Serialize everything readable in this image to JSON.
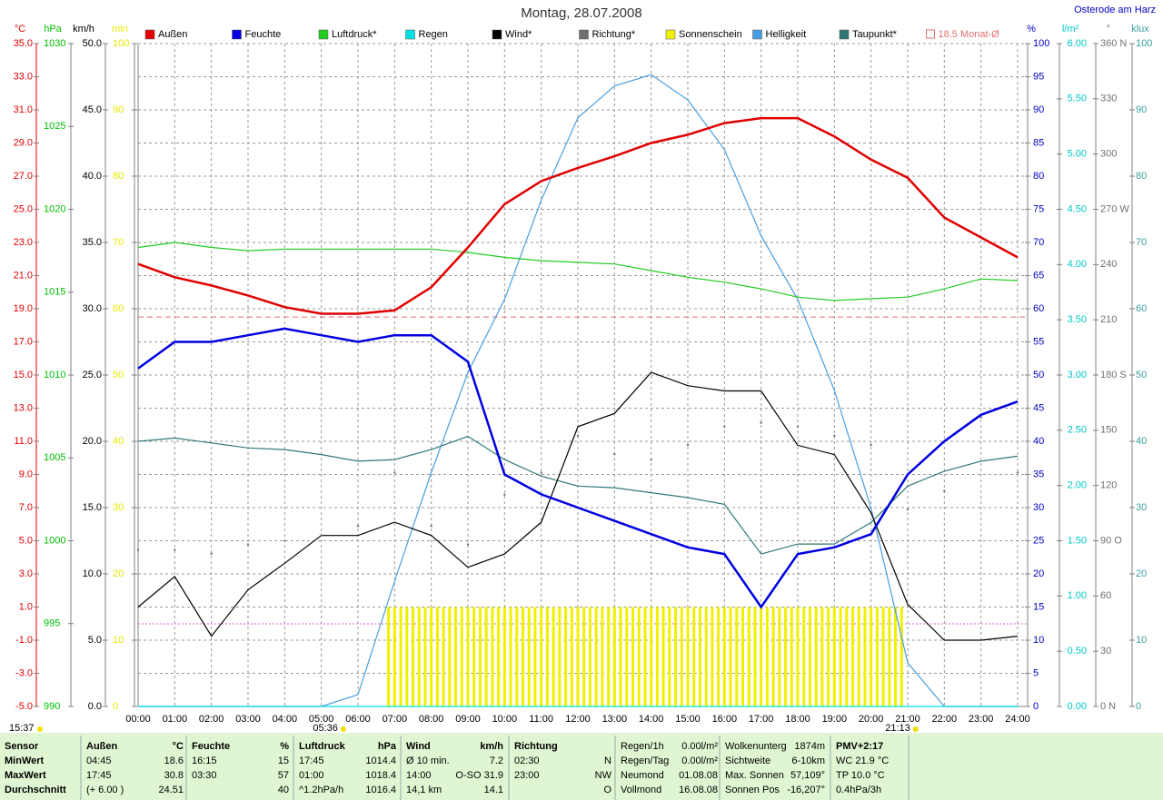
{
  "chart_data": {
    "type": "line",
    "title": "Montag, 28.07.2008",
    "location": "Osterode am Harz",
    "categories": [
      "00:00",
      "01:00",
      "02:00",
      "03:00",
      "04:00",
      "05:00",
      "06:00",
      "07:00",
      "08:00",
      "09:00",
      "10:00",
      "11:00",
      "12:00",
      "13:00",
      "14:00",
      "15:00",
      "16:00",
      "17:00",
      "18:00",
      "19:00",
      "20:00",
      "21:00",
      "22:00",
      "23:00",
      "24:00"
    ],
    "grid": true,
    "axes": [
      {
        "unit": "°C",
        "color": "#e00000",
        "lim": [
          -5,
          35
        ],
        "ticks": [
          {
            "value": -5,
            "label": "-5.0"
          },
          {
            "value": -3,
            "label": "-3.0"
          },
          {
            "value": -1,
            "label": "-1.0"
          },
          {
            "value": 1,
            "label": "1.0"
          },
          {
            "value": 3,
            "label": "3.0"
          },
          {
            "value": 5,
            "label": "5.0"
          },
          {
            "value": 7,
            "label": "7.0"
          },
          {
            "value": 9,
            "label": "9.0"
          },
          {
            "value": 11,
            "label": "11.0"
          },
          {
            "value": 13,
            "label": "13.0"
          },
          {
            "value": 15,
            "label": "15.0"
          },
          {
            "value": 17,
            "label": "17.0"
          },
          {
            "value": 19,
            "label": "19.0"
          },
          {
            "value": 21,
            "label": "21.0"
          },
          {
            "value": 23,
            "label": "23.0"
          },
          {
            "value": 25,
            "label": "25.0"
          },
          {
            "value": 27,
            "label": "27.0"
          },
          {
            "value": 29,
            "label": "29.0"
          },
          {
            "value": 31,
            "label": "31.0"
          },
          {
            "value": 33,
            "label": "33.0"
          },
          {
            "value": 35,
            "label": "35.0"
          }
        ]
      },
      {
        "unit": "hPa",
        "color": "#00c000",
        "lim": [
          990,
          1030
        ],
        "ticks": [
          990,
          995,
          1000,
          1005,
          1010,
          1015,
          1020,
          1025,
          1030
        ]
      },
      {
        "unit": "km/h",
        "color": "#000000",
        "lim": [
          0,
          50
        ],
        "ticks": [
          {
            "value": 0,
            "label": "0.0"
          },
          {
            "value": 5,
            "label": "5.0"
          },
          {
            "value": 10,
            "label": "10.0"
          },
          {
            "value": 15,
            "label": "15.0"
          },
          {
            "value": 20,
            "label": "20.0"
          },
          {
            "value": 25,
            "label": "25.0"
          },
          {
            "value": 30,
            "label": "30.0"
          },
          {
            "value": 35,
            "label": "35.0"
          },
          {
            "value": 40,
            "label": "40.0"
          },
          {
            "value": 45,
            "label": "45.0"
          },
          {
            "value": 50,
            "label": "50.0"
          }
        ]
      },
      {
        "unit": "min",
        "color": "#e8e800",
        "lim": [
          0,
          100
        ],
        "ticks": [
          0,
          10,
          20,
          30,
          40,
          50,
          60,
          70,
          80,
          90,
          100
        ]
      },
      {
        "unit": "%",
        "color": "#0000c0",
        "lim": [
          0,
          100
        ],
        "ticks": [
          0,
          5,
          10,
          15,
          20,
          25,
          30,
          35,
          40,
          45,
          50,
          55,
          60,
          65,
          70,
          75,
          80,
          85,
          90,
          95,
          100
        ]
      },
      {
        "unit": "l/m²",
        "color": "#00c8c8",
        "lim": [
          0,
          6
        ],
        "ticks": [
          {
            "value": 0,
            "label": "0.00"
          },
          {
            "value": 0.5,
            "label": "0.50"
          },
          {
            "value": 1,
            "label": "1.00"
          },
          {
            "value": 1.5,
            "label": "1.50"
          },
          {
            "value": 2,
            "label": "2.00"
          },
          {
            "value": 2.5,
            "label": "2.50"
          },
          {
            "value": 3,
            "label": "3.00"
          },
          {
            "value": 3.5,
            "label": "3.50"
          },
          {
            "value": 4,
            "label": "4.00"
          },
          {
            "value": 4.5,
            "label": "4.50"
          },
          {
            "value": 5,
            "label": "5.00"
          },
          {
            "value": 5.5,
            "label": "5.50"
          },
          {
            "value": 6,
            "label": "6.00"
          }
        ]
      },
      {
        "unit": "°",
        "color": "#707070",
        "lim": [
          0,
          360
        ],
        "ticks": [
          {
            "value": 0,
            "label": "0 N"
          },
          30,
          60,
          {
            "value": 90,
            "label": "90 O"
          },
          120,
          150,
          {
            "value": 180,
            "label": "180 S"
          },
          210,
          240,
          {
            "value": 270,
            "label": "270 W"
          },
          300,
          330,
          {
            "value": 360,
            "label": "360 N"
          }
        ]
      },
      {
        "unit": "klux",
        "color": "#3aa0a0",
        "lim": [
          0,
          100
        ],
        "ticks": [
          0,
          10,
          20,
          30,
          40,
          50,
          60,
          70,
          80,
          90,
          100
        ]
      }
    ],
    "series": [
      {
        "name": "Außen",
        "color": "#e00000",
        "axis": "°C",
        "style": "line",
        "values": [
          21.7,
          20.9,
          20.4,
          19.8,
          19.1,
          18.7,
          18.7,
          18.9,
          20.3,
          22.7,
          25.3,
          26.7,
          27.5,
          28.2,
          29.0,
          29.5,
          30.2,
          30.5,
          30.5,
          29.4,
          28.0,
          26.9,
          24.5,
          23.3,
          22.1
        ]
      },
      {
        "name": "Feuchte",
        "color": "#0000e0",
        "axis": "%",
        "style": "line",
        "values": [
          51,
          55,
          55,
          56,
          57,
          56,
          55,
          56,
          56,
          52,
          35,
          32,
          30,
          28,
          26,
          24,
          23,
          15,
          23,
          24,
          26,
          35,
          40,
          44,
          46
        ]
      },
      {
        "name": "Luftdruck*",
        "color": "#22cc22",
        "axis": "hPa",
        "style": "line",
        "values": [
          1017.7,
          1018.0,
          1017.7,
          1017.5,
          1017.6,
          1017.6,
          1017.6,
          1017.6,
          1017.6,
          1017.4,
          1017.1,
          1016.9,
          1016.8,
          1016.7,
          1016.3,
          1015.9,
          1015.6,
          1015.2,
          1014.7,
          1014.5,
          1014.6,
          1014.7,
          1015.2,
          1015.8,
          1015.7
        ]
      },
      {
        "name": "Regen",
        "color": "#00e0e0",
        "axis": "l/m²",
        "style": "line",
        "values": [
          0,
          0,
          0,
          0,
          0,
          0,
          0,
          0,
          0,
          0,
          0,
          0,
          0,
          0,
          0,
          0,
          0,
          0,
          0,
          0,
          0,
          0,
          0,
          0,
          0
        ]
      },
      {
        "name": "Wind*",
        "color": "#000000",
        "axis": "km/h",
        "style": "line",
        "values": [
          7.5,
          9.8,
          5.3,
          8.8,
          10.8,
          12.9,
          12.9,
          13.9,
          12.9,
          10.5,
          11.5,
          13.9,
          21.1,
          22.1,
          25.2,
          24.2,
          23.8,
          23.8,
          19.7,
          19.0,
          14.6,
          7.7,
          5.0,
          5.0,
          5.3
        ]
      },
      {
        "name": "Richtung*",
        "color": "#707070",
        "axis": "°",
        "style": "dots",
        "values": [
          85,
          85,
          83,
          88,
          90,
          93,
          98,
          127,
          98,
          88,
          115,
          127,
          147,
          137,
          134,
          142,
          152,
          154,
          152,
          147,
          142,
          107,
          117,
          157,
          127
        ]
      },
      {
        "name": "Helligkeit",
        "color": "#4a9ee0",
        "axis": "klux",
        "style": "line",
        "values": [
          0,
          0,
          0,
          0,
          0,
          0,
          1.8,
          18.9,
          35.3,
          50.4,
          61.4,
          76.4,
          88.8,
          93.6,
          95.3,
          91.5,
          84,
          71,
          61.4,
          47.7,
          29.9,
          6.6,
          0,
          0,
          0
        ]
      },
      {
        "name": "Taupunkt*",
        "color": "#307878",
        "axis": "°C",
        "style": "line",
        "values": [
          11.0,
          11.2,
          10.9,
          10.6,
          10.5,
          10.2,
          9.8,
          9.9,
          10.5,
          11.3,
          9.9,
          8.9,
          8.3,
          8.2,
          7.9,
          7.6,
          7.2,
          4.2,
          4.8,
          4.8,
          6.1,
          8.3,
          9.2,
          9.8,
          10.1
        ]
      }
    ],
    "sunshine": {
      "name": "Sonnenschein",
      "color": "#f0f000",
      "axis": "min",
      "values": [
        15,
        15,
        15,
        15,
        15,
        15,
        15,
        15,
        15,
        15,
        15,
        15,
        15,
        15,
        15,
        15,
        15,
        15,
        15,
        15,
        15,
        15,
        15,
        15,
        15,
        15,
        15,
        15,
        15,
        15,
        15,
        15,
        15,
        15,
        15,
        15,
        15,
        15,
        15,
        15,
        15,
        15,
        15,
        15,
        15,
        15,
        15,
        15,
        15,
        15,
        15,
        15,
        15,
        15,
        15,
        15,
        15,
        15,
        15,
        15,
        15,
        15,
        15,
        15,
        15,
        15,
        15,
        15,
        15,
        15,
        15,
        15,
        15,
        15,
        15,
        15,
        15,
        15,
        15,
        15,
        15,
        15,
        15,
        15,
        15
      ]
    },
    "monthly_avg": {
      "label": "18.5 Monat-Ø",
      "value": 18.5,
      "color": "#e07070",
      "axis": "°C"
    },
    "sun": {
      "daylength": "15:37",
      "rise": "05:36",
      "set": "21:13"
    }
  },
  "summary": {
    "labels": [
      "Sensor",
      "MinWert",
      "MaxWert",
      "Durchschnitt"
    ],
    "columns": [
      {
        "header": [
          "Außen",
          "°C"
        ],
        "rows": [
          [
            "04:45",
            "18.6"
          ],
          [
            "17:45",
            "30.8"
          ],
          [
            "(+ 6.00 )",
            "24.51"
          ]
        ]
      },
      {
        "header": [
          "Feuchte",
          "%"
        ],
        "rows": [
          [
            "16:15",
            "15"
          ],
          [
            "03:30",
            "57"
          ],
          [
            null,
            "40"
          ]
        ]
      },
      {
        "header": [
          "Luftdruck",
          "hPa"
        ],
        "rows": [
          [
            "17:45",
            "1014.4"
          ],
          [
            "01:00",
            "1018.4"
          ],
          [
            "^1.2hPa/h",
            "1016.4"
          ]
        ]
      },
      {
        "header": [
          "Wind",
          "km/h"
        ],
        "rows": [
          [
            "Ø 10 min.",
            "7.2"
          ],
          [
            "14:00",
            "O-SO 31.9"
          ],
          [
            "14,1 km",
            "14.1"
          ]
        ]
      },
      {
        "header": [
          "Richtung",
          null
        ],
        "rows": [
          [
            "02:30",
            "N"
          ],
          [
            "23:00",
            "NW"
          ],
          [
            null,
            "O"
          ]
        ]
      }
    ],
    "info": [
      [
        [
          "Regen/1h",
          "0.00l/m²"
        ],
        [
          "Regen/Tag",
          "0.00l/m²"
        ],
        [
          "Neumond",
          "01.08.08"
        ],
        [
          "Vollmond",
          "16.08.08"
        ]
      ],
      [
        [
          "Wolkenunterg",
          "1874m"
        ],
        [
          "Sichtweite",
          "6-10km"
        ],
        [
          "Max. Sonnen",
          "57,109°"
        ],
        [
          "Sonnen Pos",
          "-16,207°"
        ]
      ],
      [
        [
          "PMV+2:17",
          null
        ],
        [
          "WC 21.9 °C",
          null
        ],
        [
          "TP 10.0 °C",
          null
        ],
        [
          "0.4hPa/3h",
          null
        ]
      ]
    ]
  }
}
